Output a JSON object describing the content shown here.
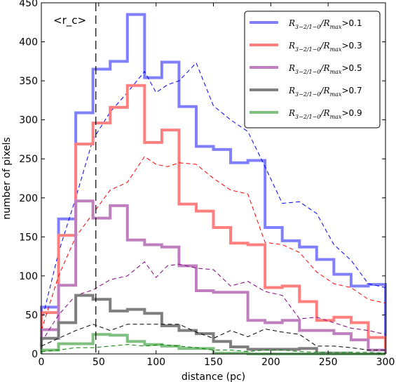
{
  "chart_data": {
    "type": "line",
    "title": "",
    "xlabel": "distance (pc)",
    "ylabel": "number of pixels",
    "xlim": [
      0,
      300
    ],
    "ylim": [
      0,
      450
    ],
    "xticks": [
      0,
      50,
      100,
      150,
      200,
      250,
      300
    ],
    "yticks": [
      0,
      50,
      100,
      150,
      200,
      250,
      300,
      350,
      400,
      450
    ],
    "grid": false,
    "legend_position": "top-right",
    "annotation": {
      "text": "<r_c>",
      "x": 47.5
    },
    "bin_edges": [
      0,
      15,
      30,
      45,
      60,
      75,
      90,
      105,
      120,
      135,
      150,
      165,
      180,
      195,
      210,
      225,
      240,
      255,
      270,
      285,
      300
    ],
    "series": [
      {
        "name": "R_{3-2/1-0}/R_{max}>0.1",
        "legend_main": "R",
        "legend_sub1": "3−2/1−0",
        "legend_mid": "/R",
        "legend_sub2": "max",
        "legend_tail": ">0.1",
        "color": "#7f7fff",
        "dashed_color": "#0000ff",
        "hist": [
          60,
          173,
          309,
          365,
          375,
          435,
          354,
          374,
          317,
          266,
          262,
          245,
          248,
          162,
          145,
          137,
          121,
          102,
          87,
          89
        ],
        "dashed": [
          [
            0,
            40
          ],
          [
            15,
            130
          ],
          [
            30,
            200
          ],
          [
            45,
            275
          ],
          [
            60,
            310
          ],
          [
            75,
            335
          ],
          [
            90,
            362
          ],
          [
            100,
            335
          ],
          [
            110,
            345
          ],
          [
            120,
            350
          ],
          [
            135,
            373
          ],
          [
            150,
            318
          ],
          [
            165,
            300
          ],
          [
            180,
            285
          ],
          [
            195,
            240
          ],
          [
            210,
            193
          ],
          [
            225,
            195
          ],
          [
            240,
            180
          ],
          [
            255,
            140
          ],
          [
            270,
            120
          ],
          [
            285,
            90
          ],
          [
            300,
            85
          ]
        ]
      },
      {
        "name": "R_{3-2/1-0}/R_{max}>0.3",
        "legend_main": "R",
        "legend_sub1": "3−2/1−0",
        "legend_mid": "/R",
        "legend_sub2": "max",
        "legend_tail": ">0.3",
        "color": "#ff7f7f",
        "dashed_color": "#ff0000",
        "hist": [
          53,
          152,
          269,
          296,
          316,
          344,
          271,
          287,
          192,
          183,
          162,
          142,
          140,
          85,
          87,
          67,
          43,
          47,
          40,
          21
        ],
        "dashed": [
          [
            0,
            30
          ],
          [
            15,
            100
          ],
          [
            30,
            150
          ],
          [
            45,
            180
          ],
          [
            60,
            210
          ],
          [
            75,
            220
          ],
          [
            90,
            253
          ],
          [
            100,
            243
          ],
          [
            110,
            240
          ],
          [
            120,
            245
          ],
          [
            135,
            243
          ],
          [
            150,
            225
          ],
          [
            165,
            210
          ],
          [
            180,
            205
          ],
          [
            195,
            143
          ],
          [
            210,
            140
          ],
          [
            225,
            130
          ],
          [
            240,
            105
          ],
          [
            255,
            90
          ],
          [
            270,
            85
          ],
          [
            285,
            70
          ],
          [
            300,
            65
          ]
        ]
      },
      {
        "name": "R_{3-2/1-0}/R_{max}>0.5",
        "legend_main": "R",
        "legend_sub1": "3−2/1−0",
        "legend_mid": "/R",
        "legend_sub2": "max",
        "legend_tail": ">0.5",
        "color": "#bf7fbf",
        "dashed_color": "#800080",
        "hist": [
          31,
          88,
          196,
          174,
          190,
          146,
          140,
          137,
          113,
          81,
          79,
          79,
          43,
          40,
          43,
          30,
          30,
          26,
          18,
          5
        ],
        "dashed": [
          [
            0,
            15
          ],
          [
            15,
            50
          ],
          [
            30,
            75
          ],
          [
            45,
            82
          ],
          [
            60,
            95
          ],
          [
            75,
            100
          ],
          [
            90,
            118
          ],
          [
            100,
            98
          ],
          [
            110,
            113
          ],
          [
            120,
            115
          ],
          [
            135,
            110
          ],
          [
            150,
            108
          ],
          [
            165,
            87
          ],
          [
            180,
            93
          ],
          [
            195,
            80
          ],
          [
            210,
            75
          ],
          [
            225,
            45
          ],
          [
            240,
            47
          ],
          [
            255,
            40
          ],
          [
            270,
            33
          ],
          [
            285,
            30
          ],
          [
            300,
            25
          ]
        ]
      },
      {
        "name": "R_{3-2/1-0}/R_{max}>0.7",
        "legend_main": "R",
        "legend_sub1": "3−2/1−0",
        "legend_mid": "/R",
        "legend_sub2": "max",
        "legend_tail": ">0.7",
        "color": "#7f7f7f",
        "dashed_color": "#000000",
        "hist": [
          20,
          40,
          75,
          70,
          55,
          57,
          52,
          36,
          30,
          26,
          16,
          9,
          6,
          6,
          6,
          7,
          1,
          1,
          0,
          0
        ],
        "dashed": [
          [
            0,
            10
          ],
          [
            15,
            20
          ],
          [
            30,
            30
          ],
          [
            45,
            38
          ],
          [
            60,
            30
          ],
          [
            75,
            38
          ],
          [
            90,
            38
          ],
          [
            105,
            38
          ],
          [
            120,
            38
          ],
          [
            135,
            28
          ],
          [
            150,
            20
          ],
          [
            165,
            30
          ],
          [
            180,
            22
          ],
          [
            195,
            32
          ],
          [
            210,
            28
          ],
          [
            225,
            25
          ],
          [
            240,
            10
          ],
          [
            255,
            10
          ],
          [
            270,
            8
          ],
          [
            285,
            5
          ],
          [
            300,
            5
          ]
        ]
      },
      {
        "name": "R_{3-2/1-0}/R_{max}>0.9",
        "legend_main": "R",
        "legend_sub1": "3−2/1−0",
        "legend_mid": "/R",
        "legend_sub2": "max",
        "legend_tail": ">0.9",
        "color": "#7fbf7f",
        "dashed_color": "#008000",
        "hist": [
          5,
          13,
          13,
          25,
          24,
          16,
          12,
          10,
          7,
          7,
          1,
          1,
          0,
          0,
          0,
          0,
          0,
          0,
          0,
          0
        ],
        "dashed": [
          [
            0,
            3
          ],
          [
            15,
            5
          ],
          [
            30,
            8
          ],
          [
            45,
            8
          ],
          [
            60,
            10
          ],
          [
            75,
            12
          ],
          [
            90,
            10
          ],
          [
            105,
            12
          ],
          [
            120,
            10
          ],
          [
            135,
            8
          ],
          [
            150,
            5
          ],
          [
            165,
            5
          ],
          [
            180,
            3
          ],
          [
            195,
            5
          ],
          [
            210,
            5
          ],
          [
            225,
            3
          ],
          [
            240,
            2
          ],
          [
            255,
            2
          ],
          [
            270,
            2
          ],
          [
            285,
            2
          ],
          [
            300,
            1
          ]
        ]
      }
    ]
  }
}
